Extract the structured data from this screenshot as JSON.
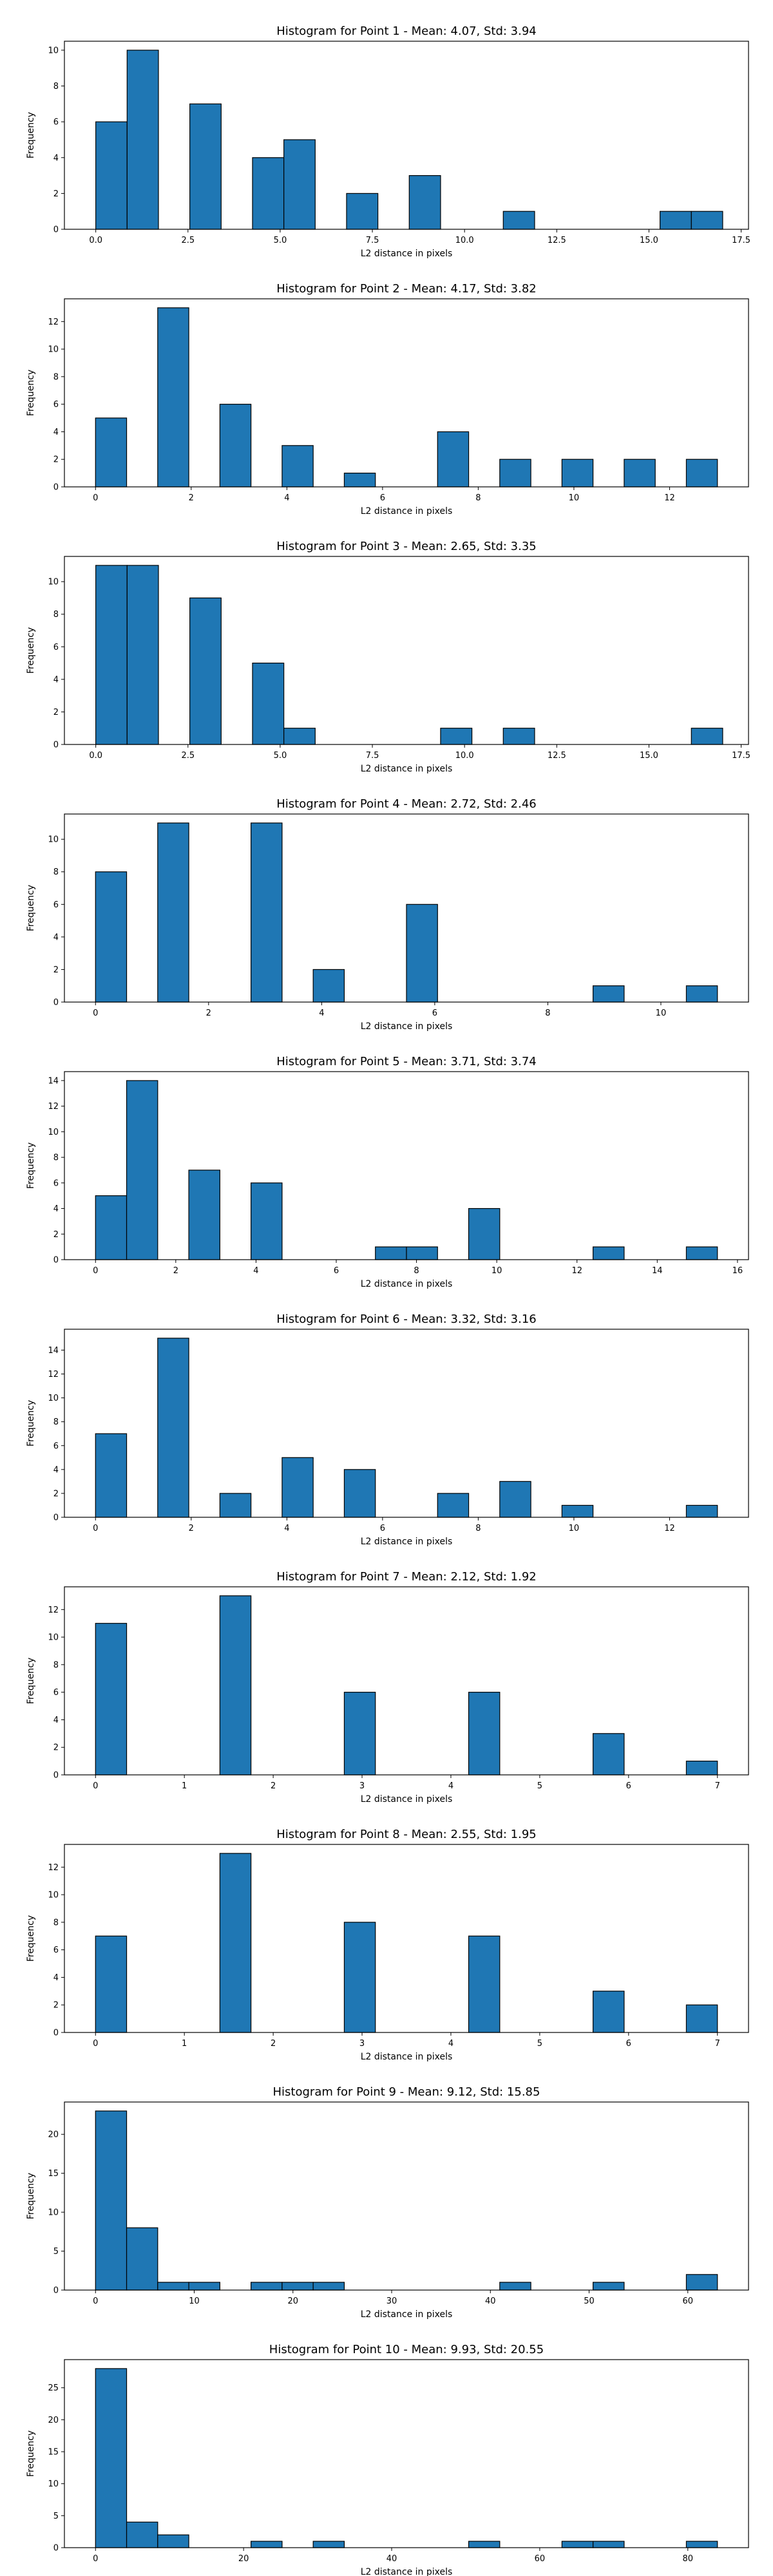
{
  "figure": {
    "xlabel": "L2 distance in pixels",
    "ylabel": "Frequency",
    "bar_color": "#1f77b4",
    "edge_color": "#000000"
  },
  "chart_data": [
    {
      "type": "bar",
      "title": "Histogram for Point 1 - Mean: 4.07, Std: 3.94",
      "xlabel": "L2 distance in pixels",
      "ylabel": "Frequency",
      "xlim": [
        -0.85,
        17.7
      ],
      "ylim": [
        0,
        10.5
      ],
      "xticks": [
        0.0,
        2.5,
        5.0,
        7.5,
        10.0,
        12.5,
        15.0,
        17.5
      ],
      "xtick_labels": [
        "0.0",
        "2.5",
        "5.0",
        "7.5",
        "10.0",
        "12.5",
        "15.0",
        "17.5"
      ],
      "yticks": [
        0,
        2,
        4,
        6,
        8,
        10
      ],
      "bins": [
        [
          0.0,
          0.85,
          6
        ],
        [
          0.85,
          1.7,
          10
        ],
        [
          2.55,
          3.4,
          7
        ],
        [
          4.25,
          5.1,
          4
        ],
        [
          5.1,
          5.95,
          5
        ],
        [
          6.8,
          7.65,
          2
        ],
        [
          8.5,
          9.35,
          3
        ],
        [
          11.05,
          11.9,
          1
        ],
        [
          15.3,
          16.15,
          1
        ],
        [
          16.15,
          17.0,
          1
        ]
      ],
      "grid": false
    },
    {
      "type": "bar",
      "title": "Histogram for Point 2 - Mean: 4.17, Std: 3.82",
      "xlabel": "L2 distance in pixels",
      "ylabel": "Frequency",
      "xlim": [
        -0.65,
        13.65
      ],
      "ylim": [
        0,
        13.65
      ],
      "xticks": [
        0,
        2,
        4,
        6,
        8,
        10,
        12
      ],
      "xtick_labels": [
        "0",
        "2",
        "4",
        "6",
        "8",
        "10",
        "12"
      ],
      "yticks": [
        0,
        2,
        4,
        6,
        8,
        10,
        12
      ],
      "bins": [
        [
          0.0,
          0.65,
          5
        ],
        [
          1.3,
          1.95,
          13
        ],
        [
          2.6,
          3.25,
          6
        ],
        [
          3.9,
          4.55,
          3
        ],
        [
          5.2,
          5.85,
          1
        ],
        [
          7.15,
          7.8,
          4
        ],
        [
          8.45,
          9.1,
          2
        ],
        [
          9.75,
          10.4,
          2
        ],
        [
          11.05,
          11.7,
          2
        ],
        [
          12.35,
          13.0,
          2
        ]
      ],
      "grid": false
    },
    {
      "type": "bar",
      "title": "Histogram for Point 3 - Mean: 2.65, Std: 3.35",
      "xlabel": "L2 distance in pixels",
      "ylabel": "Frequency",
      "xlim": [
        -0.85,
        17.7
      ],
      "ylim": [
        0,
        11.55
      ],
      "xticks": [
        0.0,
        2.5,
        5.0,
        7.5,
        10.0,
        12.5,
        15.0,
        17.5
      ],
      "xtick_labels": [
        "0.0",
        "2.5",
        "5.0",
        "7.5",
        "10.0",
        "12.5",
        "15.0",
        "17.5"
      ],
      "yticks": [
        0,
        2,
        4,
        6,
        8,
        10
      ],
      "bins": [
        [
          0.0,
          0.85,
          11
        ],
        [
          0.85,
          1.7,
          11
        ],
        [
          2.55,
          3.4,
          9
        ],
        [
          4.25,
          5.1,
          5
        ],
        [
          5.1,
          5.95,
          1
        ],
        [
          9.35,
          10.2,
          1
        ],
        [
          11.05,
          11.9,
          1
        ],
        [
          16.15,
          17.0,
          1
        ]
      ],
      "grid": false
    },
    {
      "type": "bar",
      "title": "Histogram for Point 4 - Mean: 2.72, Std: 2.46",
      "xlabel": "L2 distance in pixels",
      "ylabel": "Frequency",
      "xlim": [
        -0.55,
        11.55
      ],
      "ylim": [
        0,
        11.55
      ],
      "xticks": [
        0,
        2,
        4,
        6,
        8,
        10
      ],
      "xtick_labels": [
        "0",
        "2",
        "4",
        "6",
        "8",
        "10"
      ],
      "yticks": [
        0,
        2,
        4,
        6,
        8,
        10
      ],
      "bins": [
        [
          0.0,
          0.55,
          8
        ],
        [
          1.1,
          1.65,
          11
        ],
        [
          2.75,
          3.3,
          11
        ],
        [
          3.85,
          4.4,
          2
        ],
        [
          5.5,
          6.05,
          6
        ],
        [
          8.8,
          9.35,
          1
        ],
        [
          10.45,
          11.0,
          1
        ]
      ],
      "grid": false
    },
    {
      "type": "bar",
      "title": "Histogram for Point 5 - Mean: 3.71, Std: 3.74",
      "xlabel": "L2 distance in pixels",
      "ylabel": "Frequency",
      "xlim": [
        -0.775,
        16.275
      ],
      "ylim": [
        0,
        14.7
      ],
      "xticks": [
        0,
        2,
        4,
        6,
        8,
        10,
        12,
        14,
        16
      ],
      "xtick_labels": [
        "0",
        "2",
        "4",
        "6",
        "8",
        "10",
        "12",
        "14",
        "16"
      ],
      "yticks": [
        0,
        2,
        4,
        6,
        8,
        10,
        12,
        14
      ],
      "bins": [
        [
          0.0,
          0.775,
          5
        ],
        [
          0.775,
          1.55,
          14
        ],
        [
          2.325,
          3.1,
          7
        ],
        [
          3.875,
          4.65,
          6
        ],
        [
          6.975,
          7.75,
          1
        ],
        [
          7.75,
          8.525,
          1
        ],
        [
          9.3,
          10.075,
          4
        ],
        [
          12.4,
          13.175,
          1
        ],
        [
          14.725,
          15.5,
          1
        ]
      ],
      "grid": false
    },
    {
      "type": "bar",
      "title": "Histogram for Point 6 - Mean: 3.32, Std: 3.16",
      "xlabel": "L2 distance in pixels",
      "ylabel": "Frequency",
      "xlim": [
        -0.65,
        13.65
      ],
      "ylim": [
        0,
        15.75
      ],
      "xticks": [
        0,
        2,
        4,
        6,
        8,
        10,
        12
      ],
      "xtick_labels": [
        "0",
        "2",
        "4",
        "6",
        "8",
        "10",
        "12"
      ],
      "yticks": [
        0,
        2,
        4,
        6,
        8,
        10,
        12,
        14
      ],
      "bins": [
        [
          0.0,
          0.65,
          7
        ],
        [
          1.3,
          1.95,
          15
        ],
        [
          2.6,
          3.25,
          2
        ],
        [
          3.9,
          4.55,
          5
        ],
        [
          5.2,
          5.85,
          4
        ],
        [
          7.15,
          7.8,
          2
        ],
        [
          8.45,
          9.1,
          3
        ],
        [
          9.75,
          10.4,
          1
        ],
        [
          12.35,
          13.0,
          1
        ]
      ],
      "grid": false
    },
    {
      "type": "bar",
      "title": "Histogram for Point 7 - Mean: 2.12, Std: 1.92",
      "xlabel": "L2 distance in pixels",
      "ylabel": "Frequency",
      "xlim": [
        -0.35,
        7.35
      ],
      "ylim": [
        0,
        13.65
      ],
      "xticks": [
        0,
        1,
        2,
        3,
        4,
        5,
        6,
        7
      ],
      "xtick_labels": [
        "0",
        "1",
        "2",
        "3",
        "4",
        "5",
        "6",
        "7"
      ],
      "yticks": [
        0,
        2,
        4,
        6,
        8,
        10,
        12
      ],
      "bins": [
        [
          0.0,
          0.35,
          11
        ],
        [
          1.4,
          1.75,
          13
        ],
        [
          2.8,
          3.15,
          6
        ],
        [
          4.2,
          4.55,
          6
        ],
        [
          5.6,
          5.95,
          3
        ],
        [
          6.65,
          7.0,
          1
        ]
      ],
      "grid": false
    },
    {
      "type": "bar",
      "title": "Histogram for Point 8 - Mean: 2.55, Std: 1.95",
      "xlabel": "L2 distance in pixels",
      "ylabel": "Frequency",
      "xlim": [
        -0.35,
        7.35
      ],
      "ylim": [
        0,
        13.65
      ],
      "xticks": [
        0,
        1,
        2,
        3,
        4,
        5,
        6,
        7
      ],
      "xtick_labels": [
        "0",
        "1",
        "2",
        "3",
        "4",
        "5",
        "6",
        "7"
      ],
      "yticks": [
        0,
        2,
        4,
        6,
        8,
        10,
        12
      ],
      "bins": [
        [
          0.0,
          0.35,
          7
        ],
        [
          1.4,
          1.75,
          13
        ],
        [
          2.8,
          3.15,
          8
        ],
        [
          4.2,
          4.55,
          7
        ],
        [
          5.6,
          5.95,
          3
        ],
        [
          6.65,
          7.0,
          2
        ]
      ],
      "grid": false
    },
    {
      "type": "bar",
      "title": "Histogram for Point 9 - Mean: 9.12, Std: 15.85",
      "xlabel": "L2 distance in pixels",
      "ylabel": "Frequency",
      "xlim": [
        -3.15,
        66.15
      ],
      "ylim": [
        0,
        24.15
      ],
      "xticks": [
        0,
        10,
        20,
        30,
        40,
        50,
        60
      ],
      "xtick_labels": [
        "0",
        "10",
        "20",
        "30",
        "40",
        "50",
        "60"
      ],
      "yticks": [
        0,
        5,
        10,
        15,
        20
      ],
      "bins": [
        [
          0.0,
          3.15,
          23
        ],
        [
          3.15,
          6.3,
          8
        ],
        [
          6.3,
          9.45,
          1
        ],
        [
          9.45,
          12.6,
          1
        ],
        [
          15.75,
          18.9,
          1
        ],
        [
          18.9,
          22.05,
          1
        ],
        [
          22.05,
          25.2,
          1
        ],
        [
          40.95,
          44.1,
          1
        ],
        [
          50.4,
          53.55,
          1
        ],
        [
          59.85,
          63.0,
          2
        ]
      ],
      "grid": false
    },
    {
      "type": "bar",
      "title": "Histogram for Point 10 - Mean: 9.93, Std: 20.55",
      "xlabel": "L2 distance in pixels",
      "ylabel": "Frequency",
      "xlim": [
        -4.2,
        88.2
      ],
      "ylim": [
        0,
        29.4
      ],
      "xticks": [
        0,
        20,
        40,
        60,
        80
      ],
      "xtick_labels": [
        "0",
        "20",
        "40",
        "60",
        "80"
      ],
      "yticks": [
        0,
        5,
        10,
        15,
        20,
        25
      ],
      "bins": [
        [
          0.0,
          4.2,
          28
        ],
        [
          4.2,
          8.4,
          4
        ],
        [
          8.4,
          12.6,
          2
        ],
        [
          21.0,
          25.2,
          1
        ],
        [
          29.4,
          33.6,
          1
        ],
        [
          50.4,
          54.6,
          1
        ],
        [
          63.0,
          67.2,
          1
        ],
        [
          67.2,
          71.4,
          1
        ],
        [
          79.8,
          84.0,
          1
        ]
      ],
      "grid": false
    }
  ]
}
